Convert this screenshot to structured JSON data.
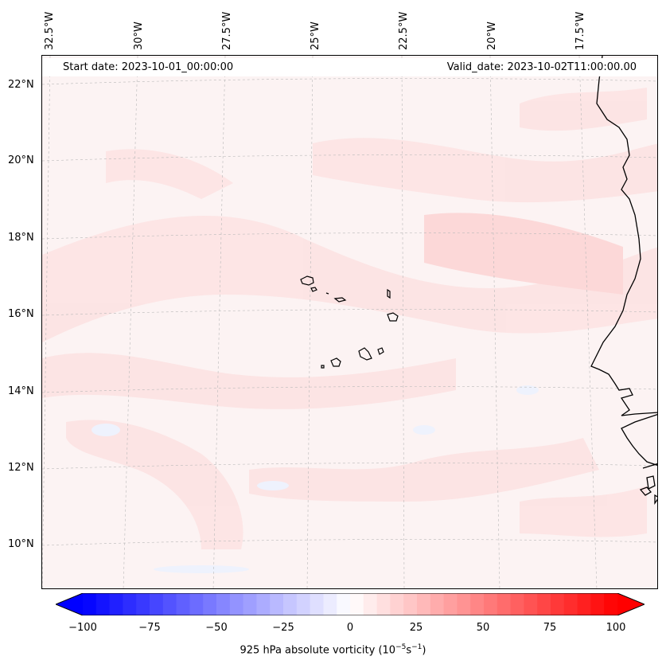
{
  "map": {
    "start_date_label": "Start date: 2023-10-01_00:00:00",
    "valid_date_label": "Valid_date: 2023-10-02T11:00:00.00",
    "lon_labels": [
      "32.5°W",
      "30°W",
      "27.5°W",
      "25°W",
      "22.5°W",
      "20°W",
      "17.5°W"
    ],
    "lat_labels": [
      "22°N",
      "20°N",
      "18°N",
      "16°N",
      "14°N",
      "12°N",
      "10°N"
    ],
    "background_color": "#fcf3f3",
    "coast_color": "#000000",
    "grid": true
  },
  "colorbar": {
    "label_prefix": "925 hPa absolute vorticity (10",
    "label_exp1": "−5",
    "label_mid": "s",
    "label_exp2": "−1",
    "label_suffix": ")",
    "tick_labels": [
      "−100",
      "−75",
      "−50",
      "−25",
      "0",
      "25",
      "50",
      "75",
      "100"
    ],
    "min": -100,
    "max": 100,
    "negative_color": "#0000ff",
    "positive_color": "#ff0000",
    "neutral_color": "#ffffff"
  }
}
